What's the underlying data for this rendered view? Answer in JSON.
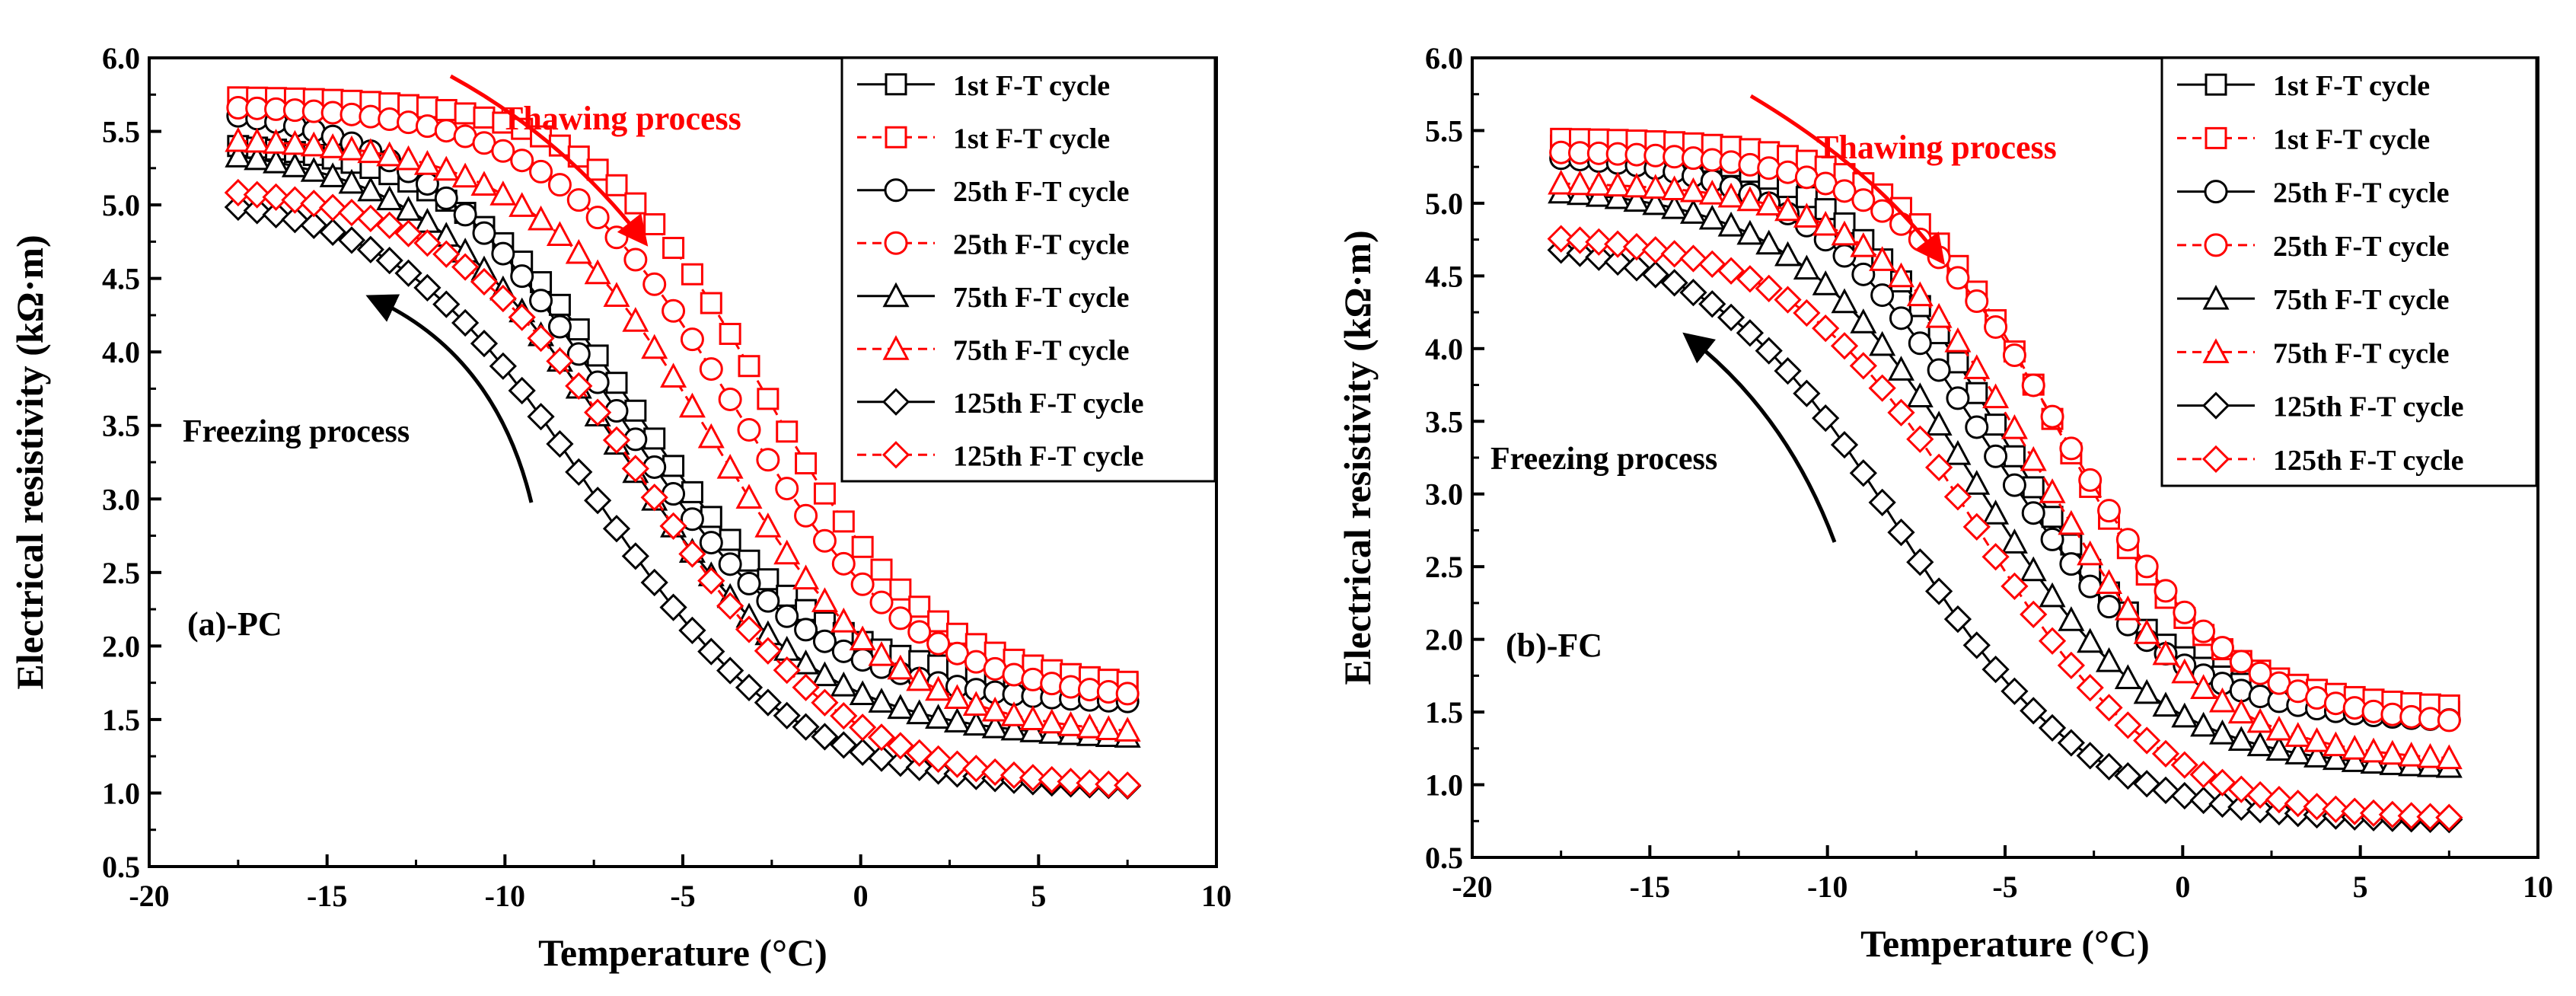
{
  "figure": {
    "panels": [
      "a",
      "b"
    ]
  },
  "colors": {
    "black": "#000000",
    "red": "#ff0000"
  },
  "legend": {
    "entries": [
      {
        "label": "1st F-T cycle",
        "marker": "square",
        "color": "#000000",
        "dash": "solid"
      },
      {
        "label": "1st F-T cycle",
        "marker": "square",
        "color": "#ff0000",
        "dash": "dashed"
      },
      {
        "label": "25th F-T cycle",
        "marker": "circle",
        "color": "#000000",
        "dash": "solid"
      },
      {
        "label": "25th F-T cycle",
        "marker": "circle",
        "color": "#ff0000",
        "dash": "dashed"
      },
      {
        "label": "75th F-T cycle",
        "marker": "triangle",
        "color": "#000000",
        "dash": "solid"
      },
      {
        "label": "75th F-T cycle",
        "marker": "triangle",
        "color": "#ff0000",
        "dash": "dashed"
      },
      {
        "label": "125th F-T cycle",
        "marker": "diamond",
        "color": "#000000",
        "dash": "solid"
      },
      {
        "label": "125th F-T cycle",
        "marker": "diamond",
        "color": "#ff0000",
        "dash": "dashed"
      }
    ]
  },
  "chart_data": [
    {
      "type": "scatter",
      "panel_label": "(a)-PC",
      "xlabel": "Temperature (°C)",
      "ylabel": "Electrical resistivity (kΩ·m)",
      "xlim": [
        -20,
        10
      ],
      "ylim": [
        0.5,
        6.0
      ],
      "xticks": [
        "-20",
        "-15",
        "-10",
        "-5",
        "0",
        "5",
        "10"
      ],
      "yticks": [
        "0.5",
        "1.0",
        "1.5",
        "2.0",
        "2.5",
        "3.0",
        "3.5",
        "4.0",
        "4.5",
        "5.0",
        "5.5",
        "6.0"
      ],
      "annotations": {
        "thawing": "Thawing process",
        "freezing": "Freezing process"
      },
      "series": [
        {
          "name": "1st F-T cycle (freezing)",
          "marker": "square",
          "color": "#000000",
          "x_start": -17.5,
          "x_end": 7.5,
          "high": 5.45,
          "low": 1.73,
          "mid": -6.3,
          "width": 2.6
        },
        {
          "name": "1st F-T cycle (thawing)",
          "marker": "square",
          "color": "#ff0000",
          "x_start": -17.5,
          "x_end": 7.5,
          "high": 5.74,
          "low": 1.7,
          "mid": -2.7,
          "width": 2.4
        },
        {
          "name": "25th F-T cycle (freezing)",
          "marker": "circle",
          "color": "#000000",
          "x_start": -17.5,
          "x_end": 7.5,
          "high": 5.7,
          "low": 1.6,
          "mid": -7.0,
          "width": 2.8
        },
        {
          "name": "25th F-T cycle (thawing)",
          "marker": "circle",
          "color": "#ff0000",
          "x_start": -17.5,
          "x_end": 7.5,
          "high": 5.68,
          "low": 1.62,
          "mid": -3.6,
          "width": 2.6
        },
        {
          "name": "75th F-T cycle (freezing)",
          "marker": "triangle",
          "color": "#000000",
          "x_start": -17.5,
          "x_end": 7.5,
          "high": 5.42,
          "low": 1.36,
          "mid": -6.9,
          "width": 2.8
        },
        {
          "name": "75th F-T cycle (thawing)",
          "marker": "triangle",
          "color": "#ff0000",
          "x_start": -17.5,
          "x_end": 7.5,
          "high": 5.46,
          "low": 1.38,
          "mid": -4.2,
          "width": 2.6
        },
        {
          "name": "125th F-T cycle (freezing)",
          "marker": "diamond",
          "color": "#000000",
          "x_start": -17.5,
          "x_end": 7.5,
          "high": 5.1,
          "low": 1.03,
          "mid": -7.6,
          "width": 2.8
        },
        {
          "name": "125th F-T cycle (thawing)",
          "marker": "diamond",
          "color": "#ff0000",
          "x_start": -17.5,
          "x_end": 7.5,
          "high": 5.15,
          "low": 1.02,
          "mid": -6.0,
          "width": 2.8
        }
      ]
    },
    {
      "type": "scatter",
      "panel_label": "(b)-FC",
      "xlabel": "Temperature (°C)",
      "ylabel": "Electrical resistivity (kΩ·m)",
      "xlim": [
        -20,
        10
      ],
      "ylim": [
        0.5,
        6.0
      ],
      "xticks": [
        "-20",
        "-15",
        "-10",
        "-5",
        "0",
        "5",
        "10"
      ],
      "yticks": [
        "0.5",
        "1.0",
        "1.5",
        "2.0",
        "2.5",
        "3.0",
        "3.5",
        "4.0",
        "4.5",
        "5.0",
        "5.5",
        "6.0"
      ],
      "annotations": {
        "thawing": "Thawing process",
        "freezing": "Freezing process"
      },
      "series": [
        {
          "name": "1st F-T cycle (freezing)",
          "marker": "square",
          "color": "#000000",
          "x_start": -17.5,
          "x_end": 7.5,
          "high": 5.42,
          "low": 1.48,
          "mid": -5.2,
          "width": 2.4
        },
        {
          "name": "1st F-T cycle (thawing)",
          "marker": "square",
          "color": "#ff0000",
          "x_start": -17.5,
          "x_end": 7.5,
          "high": 5.45,
          "low": 1.52,
          "mid": -3.6,
          "width": 2.2
        },
        {
          "name": "25th F-T cycle (freezing)",
          "marker": "circle",
          "color": "#000000",
          "x_start": -17.5,
          "x_end": 7.5,
          "high": 5.35,
          "low": 1.42,
          "mid": -5.6,
          "width": 2.6
        },
        {
          "name": "25th F-T cycle (thawing)",
          "marker": "circle",
          "color": "#ff0000",
          "x_start": -17.5,
          "x_end": 7.5,
          "high": 5.36,
          "low": 1.4,
          "mid": -3.3,
          "width": 2.4
        },
        {
          "name": "75th F-T cycle (freezing)",
          "marker": "triangle",
          "color": "#000000",
          "x_start": -17.5,
          "x_end": 7.5,
          "high": 5.12,
          "low": 1.1,
          "mid": -5.9,
          "width": 2.6
        },
        {
          "name": "75th F-T cycle (thawing)",
          "marker": "triangle",
          "color": "#ff0000",
          "x_start": -17.5,
          "x_end": 7.5,
          "high": 5.15,
          "low": 1.15,
          "mid": -4.0,
          "width": 2.4
        },
        {
          "name": "125th F-T cycle (freezing)",
          "marker": "diamond",
          "color": "#000000",
          "x_start": -17.5,
          "x_end": 7.5,
          "high": 4.78,
          "low": 0.75,
          "mid": -8.0,
          "width": 2.6
        },
        {
          "name": "125th F-T cycle (thawing)",
          "marker": "diamond",
          "color": "#ff0000",
          "x_start": -17.5,
          "x_end": 7.5,
          "high": 4.8,
          "low": 0.75,
          "mid": -5.8,
          "width": 2.6
        }
      ]
    }
  ]
}
